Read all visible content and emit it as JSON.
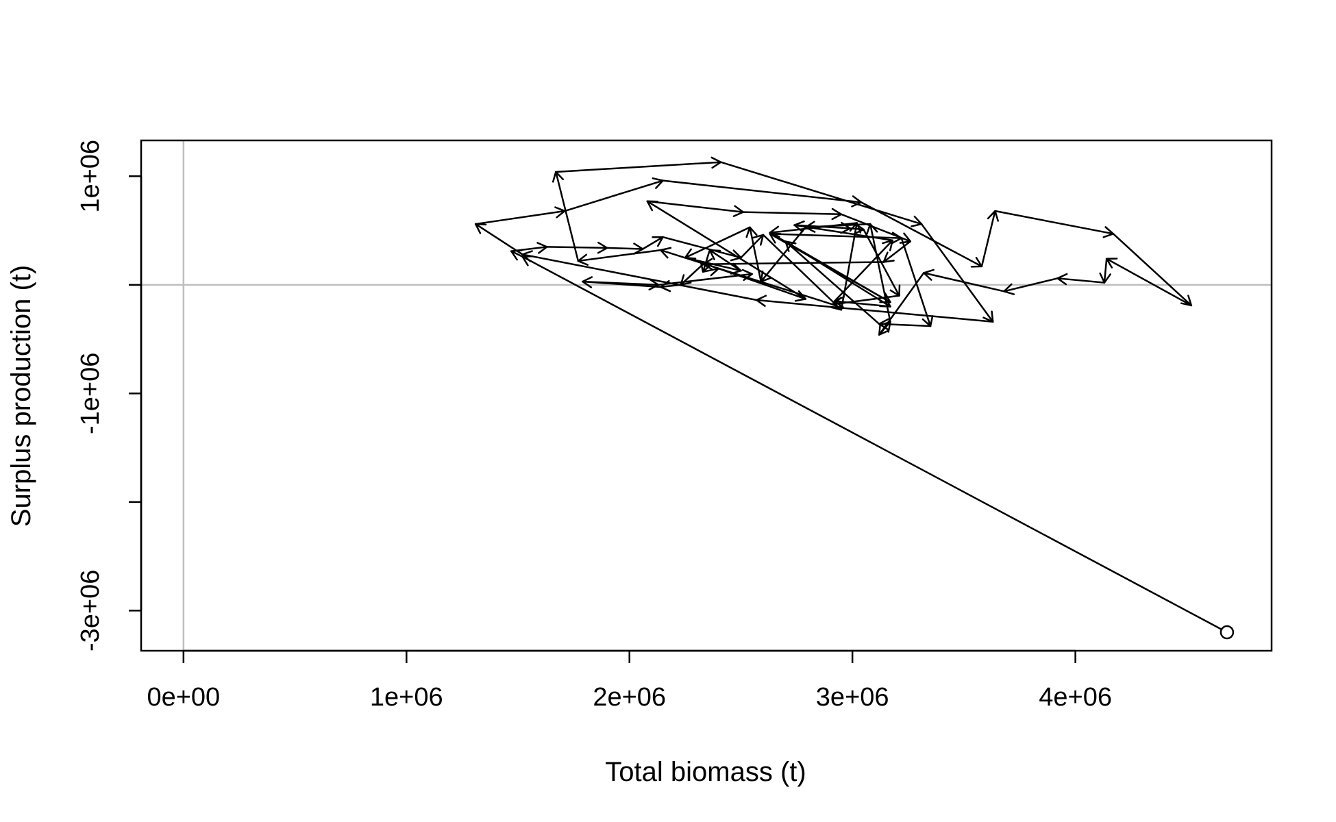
{
  "chart_data": {
    "type": "line",
    "title": "",
    "xlabel": "Total biomass (t)",
    "ylabel": "Surplus production (t)",
    "xlim": [
      -190000,
      4880000
    ],
    "ylim": [
      -3370000,
      1330000
    ],
    "x_ticks": [
      0,
      1000000,
      2000000,
      3000000,
      4000000
    ],
    "x_tick_labels": [
      "0e+00",
      "1e+06",
      "2e+06",
      "3e+06",
      "4e+06"
    ],
    "y_ticks": [
      -3000000,
      -2000000,
      -1000000,
      0,
      1000000
    ],
    "y_tick_labels": [
      "-3e+06",
      "",
      "-1e+06",
      "",
      "1e+06"
    ],
    "reference_lines": {
      "x": 0,
      "y": 0,
      "color": "#bebebe"
    },
    "start_marker": "open-circle",
    "grid": false,
    "series": [
      {
        "points": [
          [
            4680000,
            -3200000
          ],
          [
            1520000,
            260000
          ],
          [
            1470000,
            310000
          ],
          [
            1630000,
            350000
          ],
          [
            1900000,
            340000
          ],
          [
            2060000,
            330000
          ],
          [
            2150000,
            440000
          ],
          [
            2500000,
            250000
          ],
          [
            2600000,
            460000
          ],
          [
            2950000,
            -230000
          ],
          [
            3020000,
            570000
          ],
          [
            2630000,
            480000
          ],
          [
            3170000,
            -160000
          ],
          [
            2630000,
            470000
          ],
          [
            3220000,
            430000
          ],
          [
            3350000,
            -380000
          ],
          [
            3120000,
            -360000
          ],
          [
            2700000,
            400000
          ],
          [
            3170000,
            -200000
          ],
          [
            2920000,
            -150000
          ],
          [
            3180000,
            410000
          ],
          [
            2740000,
            550000
          ],
          [
            2990000,
            520000
          ],
          [
            3050000,
            510000
          ],
          [
            3210000,
            -100000
          ],
          [
            2910000,
            -180000
          ],
          [
            2140000,
            320000
          ],
          [
            1770000,
            220000
          ],
          [
            1670000,
            1040000
          ],
          [
            2410000,
            1130000
          ],
          [
            3310000,
            560000
          ],
          [
            3630000,
            -340000
          ],
          [
            2570000,
            -140000
          ],
          [
            1520000,
            280000
          ],
          [
            1310000,
            560000
          ],
          [
            1710000,
            680000
          ],
          [
            2150000,
            960000
          ],
          [
            3040000,
            760000
          ],
          [
            3580000,
            170000
          ],
          [
            3640000,
            680000
          ],
          [
            4170000,
            470000
          ],
          [
            4520000,
            -190000
          ],
          [
            4140000,
            240000
          ],
          [
            4130000,
            20000
          ],
          [
            3920000,
            60000
          ],
          [
            3680000,
            -60000
          ],
          [
            3320000,
            110000
          ],
          [
            3120000,
            -460000
          ],
          [
            3170000,
            -340000
          ],
          [
            3080000,
            560000
          ],
          [
            2790000,
            530000
          ],
          [
            2590000,
            30000
          ],
          [
            2540000,
            530000
          ],
          [
            2250000,
            250000
          ],
          [
            2500000,
            130000
          ],
          [
            2360000,
            320000
          ],
          [
            2330000,
            120000
          ],
          [
            2400000,
            150000
          ],
          [
            2790000,
            -130000
          ],
          [
            2080000,
            770000
          ],
          [
            2510000,
            670000
          ],
          [
            2950000,
            650000
          ],
          [
            3260000,
            400000
          ],
          [
            3140000,
            210000
          ],
          [
            2330000,
            190000
          ],
          [
            2230000,
            0
          ],
          [
            2140000,
            -20000
          ],
          [
            1790000,
            30000
          ],
          [
            2130000,
            0
          ],
          [
            2550000,
            100000
          ]
        ]
      }
    ]
  }
}
